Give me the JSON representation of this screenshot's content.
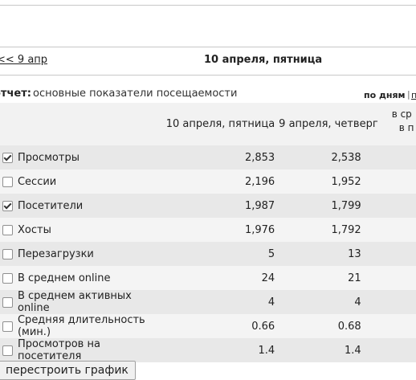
{
  "nav": {
    "prev_link": "<< 9 апр",
    "current_date": "10 апреля, пятница"
  },
  "report": {
    "label": "отчет:",
    "description": "основные показатели посещаемости",
    "period_active": "по дням",
    "separator": "|",
    "period_next": "п"
  },
  "table": {
    "headers": [
      "10 апреля, пятница",
      "9 апреля, четверг",
      "в ср",
      "в п"
    ],
    "rows": [
      {
        "checked": true,
        "name": "Просмотры",
        "v1": "2,853",
        "v2": "2,538"
      },
      {
        "checked": false,
        "name": "Сессии",
        "v1": "2,196",
        "v2": "1,952"
      },
      {
        "checked": true,
        "name": "Посетители",
        "v1": "1,987",
        "v2": "1,799"
      },
      {
        "checked": false,
        "name": "Хосты",
        "v1": "1,976",
        "v2": "1,792"
      },
      {
        "checked": false,
        "name": "Перезагрузки",
        "v1": "5",
        "v2": "13"
      },
      {
        "checked": false,
        "name": "В среднем online",
        "v1": "24",
        "v2": "21"
      },
      {
        "checked": false,
        "name": "В среднем активных online",
        "v1": "4",
        "v2": "4"
      },
      {
        "checked": false,
        "name": "Средняя длительность (мин.)",
        "v1": "0.66",
        "v2": "0.68"
      },
      {
        "checked": false,
        "name": "Просмотров на посетителя",
        "v1": "1.4",
        "v2": "1.4"
      }
    ]
  },
  "rebuild_button": "перестроить график"
}
